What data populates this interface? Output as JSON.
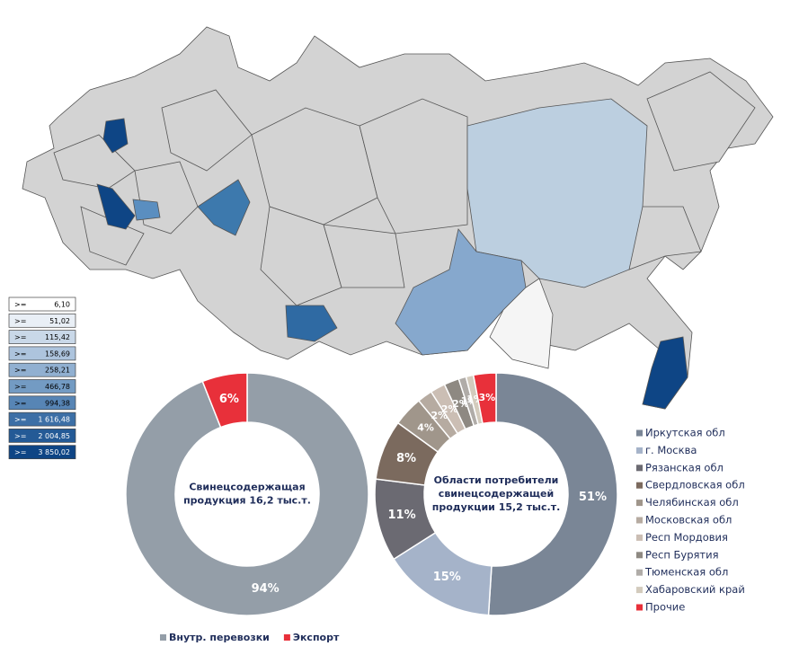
{
  "map_legend": {
    "prefix": ">=",
    "items": [
      {
        "value": 6.1,
        "label": "6,10",
        "color": "#ffffff"
      },
      {
        "value": 51.02,
        "label": "51,02",
        "color": "#e9eff6"
      },
      {
        "value": 115.42,
        "label": "115,42",
        "color": "#c9d8e8"
      },
      {
        "value": 158.69,
        "label": "158,69",
        "color": "#adc4dd"
      },
      {
        "value": 258.21,
        "label": "258,21",
        "color": "#91b0d1"
      },
      {
        "value": 466.78,
        "label": "466,78",
        "color": "#739bc3"
      },
      {
        "value": 994.38,
        "label": "994,38",
        "color": "#5785b5"
      },
      {
        "value": 1616.48,
        "label": "1 616,48",
        "color": "#3c6fa6"
      },
      {
        "value": 2004.85,
        "label": "2 004,85",
        "color": "#245a96"
      },
      {
        "value": 3850.02,
        "label": "3 850,02",
        "color": "#0e4585"
      }
    ]
  },
  "chart_data": [
    {
      "type": "pie",
      "title": [
        "Свинецсодержащая",
        "продукция  16,2 тыс.т."
      ],
      "categories": [
        "Внутр. перевозки",
        "Экспорт"
      ],
      "values": [
        94,
        6
      ],
      "value_labels": [
        "94%",
        "6%"
      ],
      "colors": [
        "#949ea8",
        "#e8303a"
      ],
      "legend": "bottom"
    },
    {
      "type": "pie",
      "title": [
        "Области потребители",
        "свинецсодержащей",
        "продукции  15,2 тыс.т."
      ],
      "categories": [
        "Иркутская обл",
        "г. Москва",
        "Рязанская обл",
        "Свердловская обл",
        "Челябинская обл",
        "Московская обл",
        "Респ Мордовия",
        "Респ Бурятия",
        "Тюменская обл",
        "Хабаровский край",
        "Прочие"
      ],
      "values": [
        51,
        15,
        11,
        8,
        4,
        2,
        2,
        2,
        1,
        1,
        3
      ],
      "value_labels": [
        "51%",
        "15%",
        "11%",
        "8%",
        "4%",
        "2%",
        "2%",
        "2%",
        "1%",
        "1%",
        "3%"
      ],
      "colors": [
        "#7a8696",
        "#a5b3c9",
        "#6b6a72",
        "#7b6a5e",
        "#a0968b",
        "#b6aba1",
        "#cbbeb4",
        "#8e8982",
        "#b0aca8",
        "#d3cbbd",
        "#e8303a"
      ],
      "legend": "right"
    }
  ]
}
